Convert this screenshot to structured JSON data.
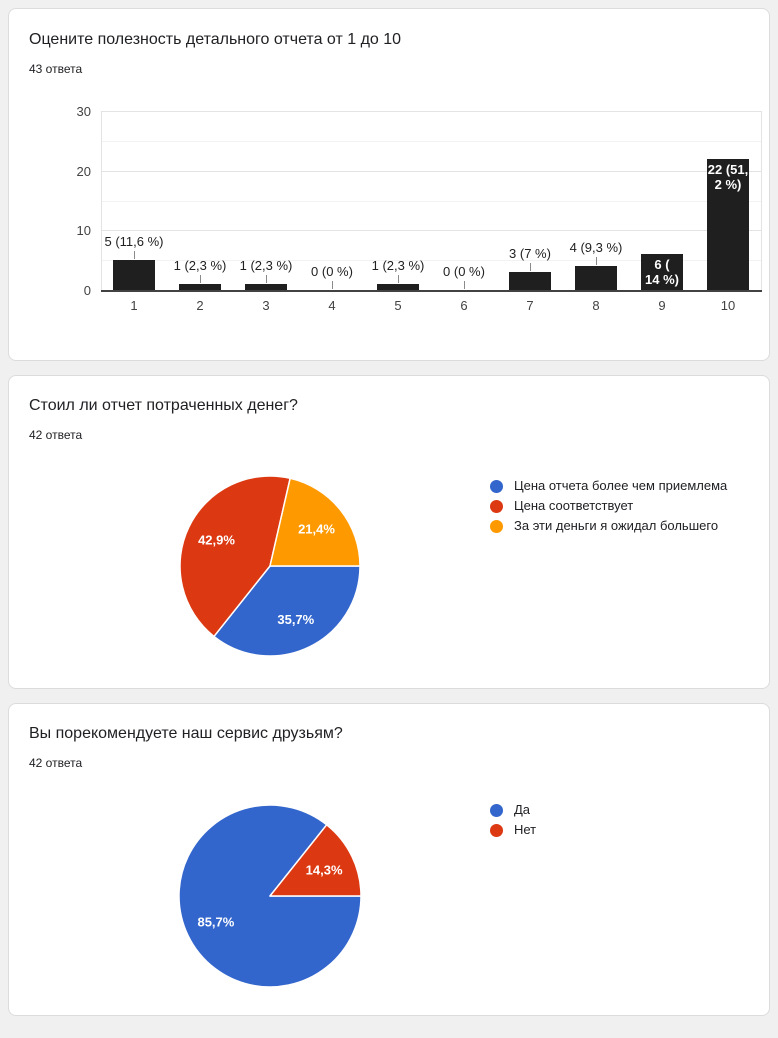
{
  "chart_data": [
    {
      "type": "bar",
      "title": "Оцените полезность детального отчета от 1 до 10",
      "responses_label": "43 ответа",
      "categories": [
        "1",
        "2",
        "3",
        "4",
        "5",
        "6",
        "7",
        "8",
        "9",
        "10"
      ],
      "values": [
        5,
        1,
        1,
        0,
        1,
        0,
        3,
        4,
        6,
        22
      ],
      "annotations": [
        {
          "lines": [
            "5 (11,6 %)"
          ],
          "inside": false
        },
        {
          "lines": [
            "1 (2,3 %)"
          ],
          "inside": false
        },
        {
          "lines": [
            "1 (2,3 %)"
          ],
          "inside": false
        },
        {
          "lines": [
            "0 (0 %)"
          ],
          "inside": false
        },
        {
          "lines": [
            "1 (2,3 %)"
          ],
          "inside": false
        },
        {
          "lines": [
            "0 (0 %)"
          ],
          "inside": false
        },
        {
          "lines": [
            "3 (7 %)"
          ],
          "inside": false
        },
        {
          "lines": [
            "4 (9,3 %)"
          ],
          "inside": false
        },
        {
          "lines": [
            "6 (",
            "14 %)"
          ],
          "inside": true
        },
        {
          "lines": [
            "22 (51,",
            "2 %)"
          ],
          "inside": true
        }
      ],
      "xlabel": "",
      "ylabel": "",
      "ylim": [
        0,
        30
      ],
      "yticks": [
        0,
        10,
        20,
        30
      ],
      "minor_gridlines": [
        5,
        15,
        25
      ],
      "bar_color": "#1f1f1f",
      "grid": true,
      "legend_position": "none"
    },
    {
      "type": "pie",
      "title": "Стоил ли отчет потраченных денег?",
      "responses_label": "42 ответа",
      "start_angle_deg": 90,
      "legend_position": "right",
      "slices": [
        {
          "label": "Цена отчета более чем приемлема",
          "pct": 35.7,
          "pct_label": "35,7%",
          "color": "#3366cc"
        },
        {
          "label": "Цена соответствует",
          "pct": 42.9,
          "pct_label": "42,9%",
          "color": "#dc3912"
        },
        {
          "label": "За эти деньги я ожидал большего",
          "pct": 21.4,
          "pct_label": "21,4%",
          "color": "#ff9900"
        }
      ]
    },
    {
      "type": "pie",
      "title": "Вы порекомендуете наш сервис друзьям?",
      "responses_label": "42 ответа",
      "start_angle_deg": 90,
      "legend_position": "right",
      "slices": [
        {
          "label": "Да",
          "pct": 85.7,
          "pct_label": "85,7%",
          "color": "#3366cc"
        },
        {
          "label": "Нет",
          "pct": 14.3,
          "pct_label": "14,3%",
          "color": "#dc3912"
        }
      ]
    }
  ],
  "colors": {
    "bar": "#1f1f1f",
    "pie_blue": "#3366cc",
    "pie_red": "#dc3912",
    "pie_orange": "#ff9900",
    "page_background": "#f0f0f0",
    "card_border": "#dcdcdc"
  }
}
